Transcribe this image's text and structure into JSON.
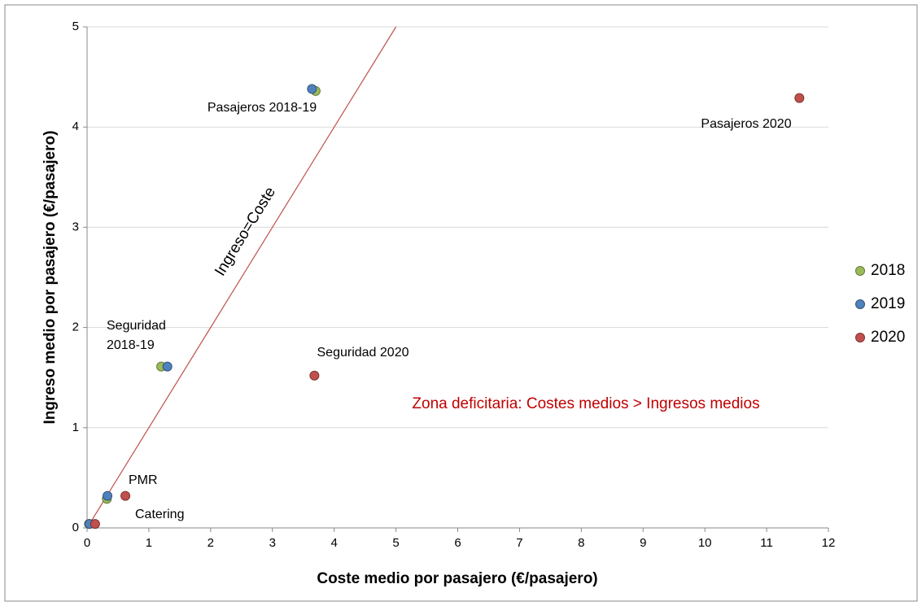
{
  "chart_data": {
    "type": "scatter",
    "x_label": "Coste medio por pasajero (€/pasajero)",
    "y_label": "Ingreso medio por pasajero (€/pasajero)",
    "xlim": [
      0,
      12
    ],
    "xticks": [
      0,
      1,
      2,
      3,
      4,
      5,
      6,
      7,
      8,
      9,
      10,
      11,
      12
    ],
    "ylim": [
      0,
      5
    ],
    "yticks": [
      0,
      1,
      2,
      3,
      4,
      5
    ],
    "grid": true,
    "legend": "right",
    "series": [
      {
        "name": "2018",
        "color": "#9bbb59",
        "x": [
          3.7,
          1.2,
          0.32,
          0.03
        ],
        "values": [
          4.36,
          1.61,
          0.29,
          0.04
        ]
      },
      {
        "name": "2019",
        "color": "#4f81bd",
        "x": [
          3.64,
          1.3,
          0.33,
          0.04
        ],
        "values": [
          4.38,
          1.61,
          0.32,
          0.04
        ]
      },
      {
        "name": "2020",
        "color": "#c0504d",
        "x": [
          11.53,
          3.68,
          0.62,
          0.13
        ],
        "values": [
          4.29,
          1.52,
          0.32,
          0.04
        ]
      }
    ],
    "reference_line": {
      "label": "Ingreso=Coste",
      "color": "#c0504d",
      "x": [
        0,
        5
      ],
      "values": [
        0,
        5
      ]
    },
    "annotations": [
      {
        "text": "Pasajeros 2018-19"
      },
      {
        "text": "Pasajeros 2020"
      },
      {
        "text": [
          "Seguridad",
          "2018-19"
        ]
      },
      {
        "text": "Seguridad 2020"
      },
      {
        "text": "PMR"
      },
      {
        "text": "Catering"
      },
      {
        "text": "Zona deficitaria: Costes medios > Ingresos medios",
        "color": "#c00000"
      }
    ]
  }
}
